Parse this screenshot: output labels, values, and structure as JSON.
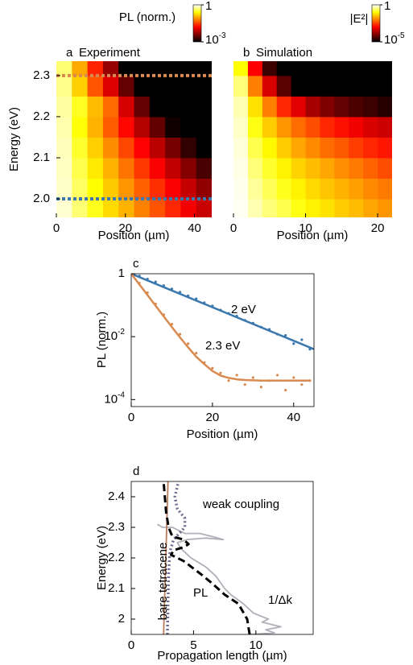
{
  "chart_data": [
    {
      "type": "heatmap",
      "panel": "a",
      "title": "Experiment",
      "colorbar_label": "PL (norm.)",
      "xlabel": "Position (µm)",
      "ylabel": "Energy (eV)",
      "x": [
        2.25,
        6.75,
        11.25,
        15.75,
        20.25,
        24.75,
        29.25,
        33.75,
        38.25,
        42.75
      ],
      "y": [
        1.975,
        2.025,
        2.075,
        2.125,
        2.175,
        2.225,
        2.275,
        2.325
      ],
      "z": [
        [
          0.78,
          0.47,
          0.29,
          0.17,
          0.11,
          0.064,
          0.039,
          0.024,
          0.014,
          0.0087
        ],
        [
          0.75,
          0.43,
          0.25,
          0.14,
          0.08,
          0.045,
          0.026,
          0.015,
          0.0084,
          0.0048
        ],
        [
          0.72,
          0.38,
          0.2,
          0.11,
          0.055,
          0.029,
          0.015,
          0.0081,
          0.0042,
          0.0022
        ],
        [
          0.69,
          0.32,
          0.15,
          0.072,
          0.034,
          0.016,
          0.0076,
          0.0036,
          0.0017,
          0.0008
        ],
        [
          0.64,
          0.26,
          0.11,
          0.043,
          0.017,
          0.0071,
          0.0029,
          0.0012,
          0.0005,
          0.0002
        ],
        [
          0.6,
          0.3,
          0.12,
          0.05,
          0.01,
          0.003,
          0.001,
          0.0005,
          0.0003,
          0.0002
        ],
        [
          0.53,
          0.15,
          0.04,
          0.011,
          0.003,
          0.0008,
          0.0005,
          0.0004,
          0.0004,
          0.0004
        ],
        [
          0.47,
          0.1,
          0.023,
          0.005,
          0.001,
          0.0005,
          0.0004,
          0.0004,
          0.0004,
          0.0004
        ]
      ],
      "xlim": [
        0,
        45
      ],
      "xticks": [
        0,
        20,
        40
      ],
      "ylim": [
        1.955,
        2.335
      ],
      "yticks": [
        {
          "value": 2,
          "label": "2.0"
        },
        2.1,
        2.2,
        2.3
      ],
      "zscale": "log",
      "zlim": [
        0.001,
        1
      ],
      "colormap": "hot",
      "zticks": [
        1,
        {
          "value": 0.001,
          "base": "10",
          "exponent": "-3"
        }
      ],
      "hlines": [
        {
          "value": 2.3,
          "color": "#d98a50"
        },
        {
          "value": 2,
          "color": "#3b78ad"
        }
      ]
    },
    {
      "type": "heatmap",
      "panel": "b",
      "title": "Simulation",
      "colorbar_label": "|E²|",
      "xlabel": "Position (µm)",
      "x": [
        1,
        3,
        5,
        7,
        9,
        11,
        13,
        15,
        17,
        19,
        21
      ],
      "y": [
        1.975,
        2.025,
        2.075,
        2.125,
        2.175,
        2.225,
        2.275,
        2.325
      ],
      "z": [
        [
          0.9,
          0.5,
          0.3,
          0.2,
          0.12,
          0.08,
          0.06,
          0.04,
          0.03,
          0.02,
          0.015
        ],
        [
          0.85,
          0.4,
          0.22,
          0.13,
          0.08,
          0.05,
          0.035,
          0.025,
          0.018,
          0.012,
          0.009
        ],
        [
          0.8,
          0.3,
          0.15,
          0.08,
          0.045,
          0.03,
          0.02,
          0.013,
          0.009,
          0.006,
          0.004
        ],
        [
          0.7,
          0.2,
          0.09,
          0.04,
          0.02,
          0.012,
          0.007,
          0.005,
          0.003,
          0.002,
          0.0015
        ],
        [
          0.6,
          0.12,
          0.04,
          0.015,
          0.007,
          0.004,
          0.002,
          0.0013,
          0.0008,
          0.0005,
          0.0004
        ],
        [
          0.5,
          0.06,
          0.01,
          0.002,
          0.0006,
          0.0002,
          0.0001,
          6e-05,
          4e-05,
          3e-05,
          2e-05
        ],
        [
          0.3,
          0.01,
          0.0005,
          5e-05,
          1e-05,
          1e-05,
          1e-05,
          1e-05,
          1e-05,
          1e-05,
          1e-05
        ],
        [
          0.1,
          0.001,
          3e-05,
          1e-05,
          1e-05,
          1e-05,
          1e-05,
          1e-05,
          1e-05,
          1e-05,
          1e-05
        ]
      ],
      "xlim": [
        0,
        22
      ],
      "xticks": [
        0,
        10,
        20
      ],
      "ylim": [
        1.955,
        2.335
      ],
      "zscale": "log",
      "zlim": [
        1e-05,
        1
      ],
      "colormap": "hot",
      "zticks": [
        1,
        {
          "value": 1e-05,
          "base": "10",
          "exponent": "-5"
        }
      ]
    },
    {
      "type": "line",
      "panel": "c",
      "xlabel": "Position (µm)",
      "ylabel": "PL (norm.)",
      "xlim": [
        0,
        45
      ],
      "xticks": [
        0,
        20,
        40
      ],
      "yscale": "log",
      "ylim": [
        6e-05,
        1
      ],
      "yticks": [
        1,
        {
          "value": 0.01,
          "base": "10",
          "exponent": "-2"
        },
        {
          "value": 0.0001,
          "base": "10",
          "exponent": "-4"
        }
      ],
      "series": [
        {
          "color": "#3b78ad",
          "style": "dots",
          "x": [
            0,
            2,
            4,
            6,
            8,
            10,
            12,
            14,
            16,
            18,
            20,
            22,
            24,
            26,
            28,
            30,
            32,
            34,
            36,
            38,
            40,
            42,
            44
          ],
          "values": [
            1,
            0.85,
            0.68,
            0.55,
            0.42,
            0.33,
            0.26,
            0.2,
            0.16,
            0.12,
            0.095,
            0.07,
            0.055,
            0.045,
            0.033,
            0.027,
            0.02,
            0.017,
            0.012,
            0.011,
            0.006,
            0.008,
            0.004
          ]
        },
        {
          "color": "#d98a50",
          "style": "dots",
          "x": [
            0,
            2,
            4,
            6,
            8,
            10,
            12,
            14,
            16,
            18,
            20,
            22,
            24,
            26,
            28,
            30,
            32,
            34,
            36,
            38,
            40,
            42,
            44
          ],
          "values": [
            1,
            0.5,
            0.25,
            0.11,
            0.05,
            0.025,
            0.012,
            0.006,
            0.003,
            0.0015,
            0.001,
            0.0007,
            0.0004,
            0.0006,
            0.0003,
            0.0005,
            0.00025,
            0.0004,
            0.0006,
            0.0002,
            0.0005,
            0.0003,
            0.0004
          ]
        },
        {
          "color": "#3b78ad",
          "style": "solid",
          "x": [
            0,
            45
          ],
          "values": [
            1,
            0.004
          ]
        },
        {
          "color": "#d98a50",
          "style": "solid",
          "x": [
            0,
            2,
            4,
            6,
            8,
            10,
            12,
            14,
            16,
            18,
            20,
            22,
            24,
            26,
            28,
            30,
            32,
            34,
            36,
            38,
            40,
            42,
            44
          ],
          "values": [
            1,
            0.458,
            0.21,
            0.096,
            0.044,
            0.0204,
            0.0095,
            0.0046,
            0.0023,
            0.00134,
            0.00081,
            0.00058,
            0.00049,
            0.00044,
            0.00042,
            0.00041,
            0.0004,
            0.0004,
            0.0004,
            0.0004,
            0.0004,
            0.0004,
            0.0004
          ]
        }
      ],
      "annotations": [
        "2 eV",
        "2.3 eV"
      ]
    },
    {
      "type": "line",
      "panel": "d",
      "xlabel": "Propagation length (µm)",
      "ylabel": "Energy (eV)",
      "xlim": [
        0,
        14.6
      ],
      "xticks": [
        0,
        5,
        10
      ],
      "ylim": [
        1.95,
        2.45
      ],
      "yticks": [
        2,
        2.1,
        2.2,
        2.3,
        2.4
      ],
      "series": [
        {
          "color": "#b0b0b8",
          "style": "solid",
          "x": [
            2.1,
            2.5,
            3.3,
            4.3,
            5.5,
            6.5,
            7.4,
            6.0,
            4.5,
            3.7,
            4.0,
            4.8,
            6.0,
            6.8,
            7.5,
            8.0,
            9.0,
            9.8,
            11.0,
            10.5,
            12.0,
            10.8,
            11.5,
            9.5
          ],
          "y": [
            2.31,
            2.3,
            2.3,
            2.28,
            2.28,
            2.27,
            2.26,
            2.265,
            2.26,
            2.25,
            2.23,
            2.2,
            2.17,
            2.14,
            2.1,
            2.08,
            2.05,
            2.02,
            2.0,
            1.99,
            1.975,
            1.965,
            1.955,
            1.95
          ]
        },
        {
          "color": "#b87c5c",
          "style": "solid",
          "x": [
            2.6,
            2.95
          ],
          "y": [
            1.95,
            2.45
          ]
        },
        {
          "color": "#6d6d93",
          "style": "dotted",
          "x": [
            2.9,
            2.95,
            3.0,
            3.1,
            3.4,
            4.3,
            4.3,
            3.7,
            3.5,
            3.8
          ],
          "y": [
            1.95,
            2.05,
            2.15,
            2.22,
            2.26,
            2.3,
            2.33,
            2.36,
            2.4,
            2.45
          ]
        },
        {
          "color": "#000000",
          "style": "dashed",
          "x": [
            9.5,
            9.3,
            8.6,
            7.5,
            6.4,
            5.5,
            4.2,
            3.2,
            3.4,
            4.2,
            4.6,
            4.2,
            3.3,
            3.0,
            2.8,
            2.6
          ],
          "y": [
            1.95,
            2.0,
            2.05,
            2.08,
            2.12,
            2.15,
            2.19,
            2.21,
            2.225,
            2.235,
            2.245,
            2.26,
            2.27,
            2.3,
            2.35,
            2.45
          ]
        }
      ],
      "annotations": [
        "weak coupling",
        "bare tetracene",
        "PL",
        "1/Δk"
      ]
    }
  ]
}
